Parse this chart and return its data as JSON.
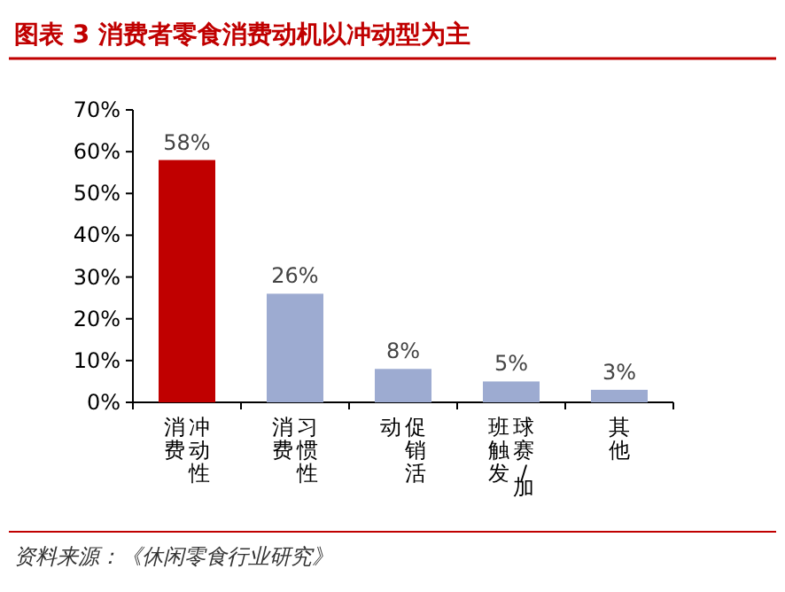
{
  "chart_data": {
    "type": "bar",
    "title": "图表 3  消费者零食消费动机以冲动型为主",
    "categories": [
      "冲动性消费",
      "习惯性消费",
      "促销活动",
      "球赛/加班触发",
      "其他"
    ],
    "values": [
      58,
      26,
      8,
      5,
      3
    ],
    "colors": [
      "#c00000",
      "#9dabd1",
      "#9dabd1",
      "#9dabd1",
      "#9dabd1"
    ],
    "value_labels": [
      "58%",
      "26%",
      "8%",
      "5%",
      "3%"
    ],
    "ylim": [
      0,
      70
    ],
    "yticks": [
      {
        "value": 0,
        "label": "0%"
      },
      {
        "value": 10,
        "label": "10%"
      },
      {
        "value": 20,
        "label": "20%"
      },
      {
        "value": 30,
        "label": "30%"
      },
      {
        "value": 40,
        "label": "40%"
      },
      {
        "value": 50,
        "label": "50%"
      },
      {
        "value": 60,
        "label": "60%"
      },
      {
        "value": 70,
        "label": "70%"
      }
    ],
    "annotations": [
      "资料来源：《休闲零食行业研究》"
    ]
  }
}
